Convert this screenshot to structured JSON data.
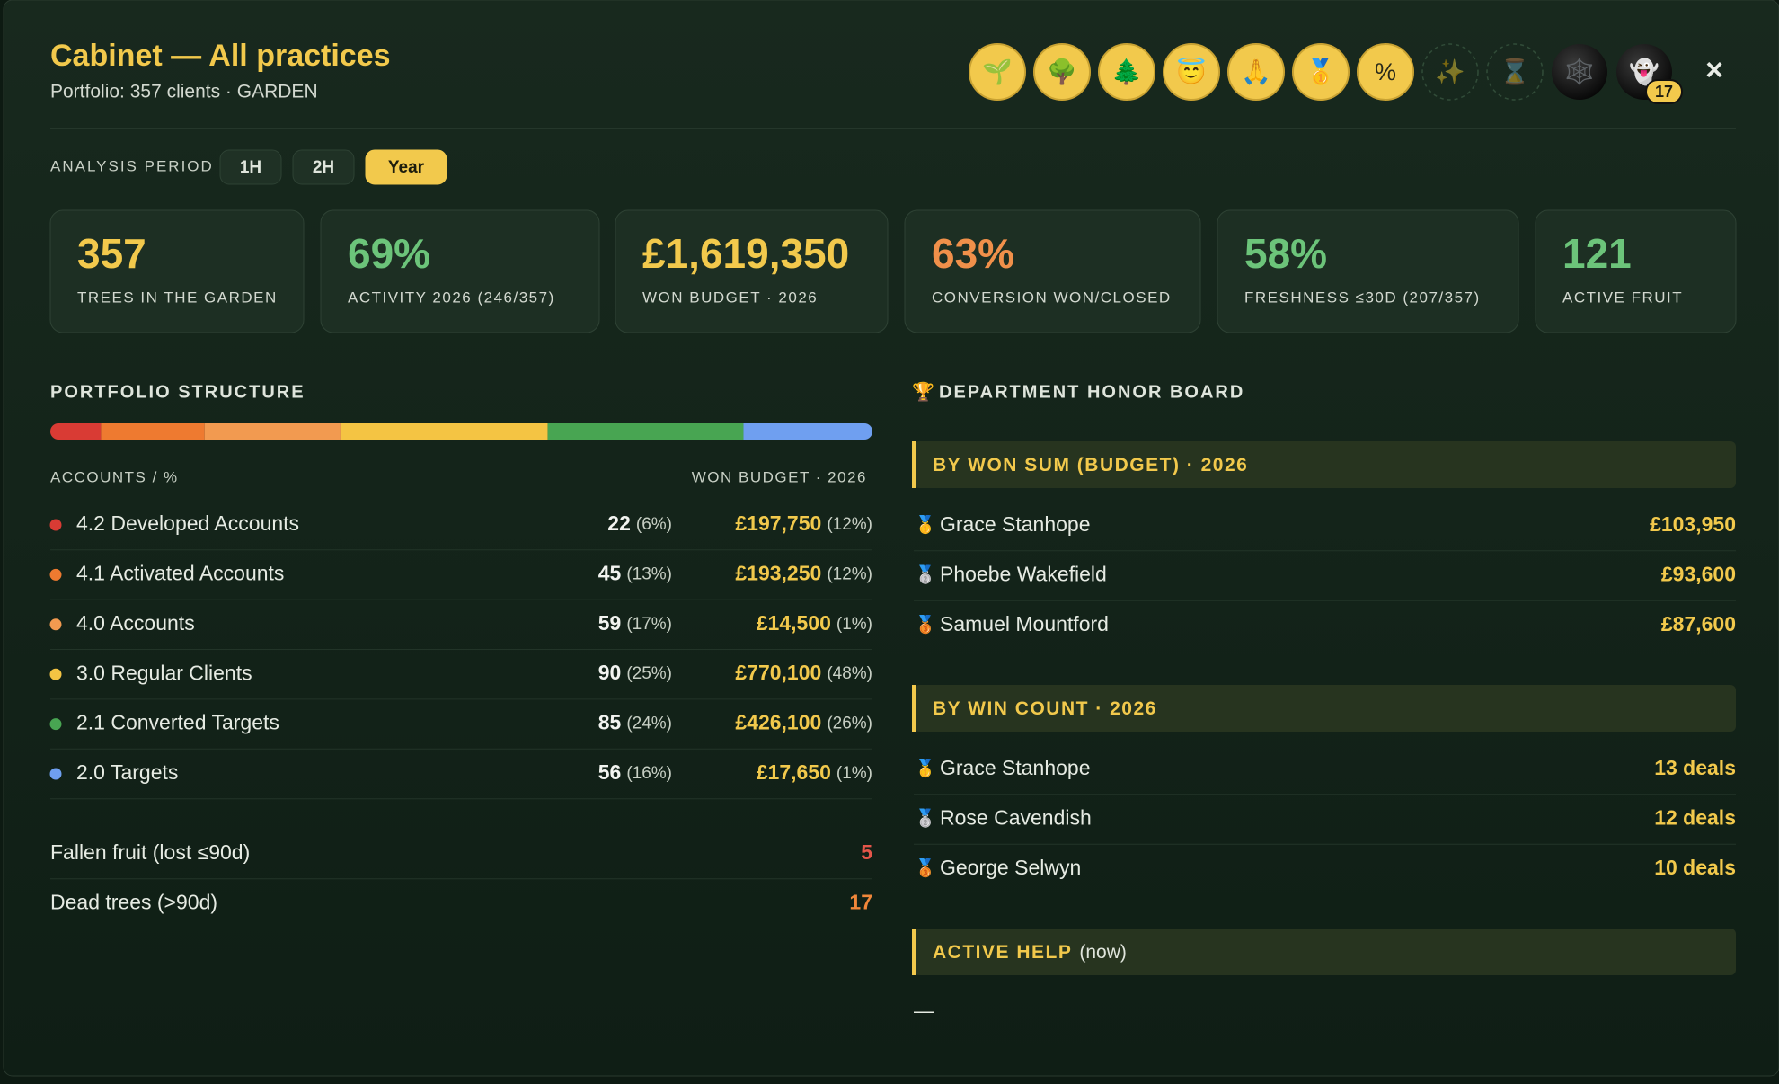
{
  "header": {
    "title": "Cabinet — All practices",
    "subtitle": "Portfolio: 357 clients · GARDEN",
    "badges": [
      {
        "icon": "🌱",
        "kind": "gold"
      },
      {
        "icon": "🌳",
        "kind": "gold"
      },
      {
        "icon": "🌲",
        "kind": "gold"
      },
      {
        "icon": "😇",
        "kind": "gold"
      },
      {
        "icon": "🙏",
        "kind": "gold"
      },
      {
        "icon": "🥇",
        "kind": "gold"
      },
      {
        "icon": "%",
        "kind": "gold"
      },
      {
        "icon": "✨",
        "kind": "empty"
      },
      {
        "icon": "⌛",
        "kind": "empty"
      },
      {
        "icon": "🕸️",
        "kind": "dark"
      },
      {
        "icon": "👻",
        "kind": "dark"
      }
    ],
    "badge_count": "17",
    "close": "×"
  },
  "period": {
    "label": "ANALYSIS PERIOD",
    "options": [
      "1H",
      "2H",
      "Year"
    ],
    "selected": 2
  },
  "kpis": [
    {
      "value": "357",
      "label": "TREES IN THE GARDEN",
      "color": "#f2c94c"
    },
    {
      "value": "69%",
      "label": "ACTIVITY 2026 (246/357)",
      "color": "#6cc47a"
    },
    {
      "value": "£1,619,350",
      "label": "WON BUDGET · 2026",
      "color": "#f2c94c"
    },
    {
      "value": "63%",
      "label": "CONVERSION WON/CLOSED",
      "color": "#f0904a"
    },
    {
      "value": "58%",
      "label": "FRESHNESS ≤30D (207/357)",
      "color": "#6cc47a"
    },
    {
      "value": "121",
      "label": "ACTIVE FRUIT",
      "color": "#6cc47a"
    }
  ],
  "structure": {
    "title": "PORTFOLIO STRUCTURE",
    "col_left": "ACCOUNTS / %",
    "col_right": "WON BUDGET · 2026",
    "rows": [
      {
        "name": "4.2 Developed Accounts",
        "color": "#d93b34",
        "count": 22,
        "count_pct": "(6%)",
        "budget": "£197,750",
        "budget_pct": "(12%)"
      },
      {
        "name": "4.1 Activated Accounts",
        "color": "#ee7a30",
        "count": 45,
        "count_pct": "(13%)",
        "budget": "£193,250",
        "budget_pct": "(12%)"
      },
      {
        "name": "4.0 Accounts",
        "color": "#f29a50",
        "count": 59,
        "count_pct": "(17%)",
        "budget": "£14,500",
        "budget_pct": "(1%)"
      },
      {
        "name": "3.0 Regular Clients",
        "color": "#f4c443",
        "count": 90,
        "count_pct": "(25%)",
        "budget": "£770,100",
        "budget_pct": "(48%)"
      },
      {
        "name": "2.1 Converted Targets",
        "color": "#48a552",
        "count": 85,
        "count_pct": "(24%)",
        "budget": "£426,100",
        "budget_pct": "(26%)"
      },
      {
        "name": "2.0 Targets",
        "color": "#6f9ff0",
        "count": 56,
        "count_pct": "(16%)",
        "budget": "£17,650",
        "budget_pct": "(1%)"
      }
    ],
    "extras": [
      {
        "label": "Fallen fruit (lost ≤90d)",
        "value": 5,
        "color": "#e5564a"
      },
      {
        "label": "Dead trees (>90d)",
        "value": 17,
        "color": "#f0873a"
      }
    ]
  },
  "honor_board": {
    "icon": "🏆",
    "title": "DEPARTMENT HONOR BOARD",
    "sections": [
      {
        "title": "BY WON SUM (BUDGET) · 2026",
        "entries": [
          {
            "medal": "🥇",
            "name": "Grace Stanhope",
            "value": "£103,950"
          },
          {
            "medal": "🥈",
            "name": "Phoebe Wakefield",
            "value": "£93,600"
          },
          {
            "medal": "🥉",
            "name": "Samuel Mountford",
            "value": "£87,600"
          }
        ]
      },
      {
        "title": "BY WIN COUNT · 2026",
        "entries": [
          {
            "medal": "🥇",
            "name": "Grace Stanhope",
            "value": "13 deals"
          },
          {
            "medal": "🥈",
            "name": "Rose Cavendish",
            "value": "12 deals"
          },
          {
            "medal": "🥉",
            "name": "George Selwyn",
            "value": "10 deals"
          }
        ]
      },
      {
        "title": "ACTIVE HELP",
        "note": "(now)",
        "empty": "—"
      }
    ]
  }
}
